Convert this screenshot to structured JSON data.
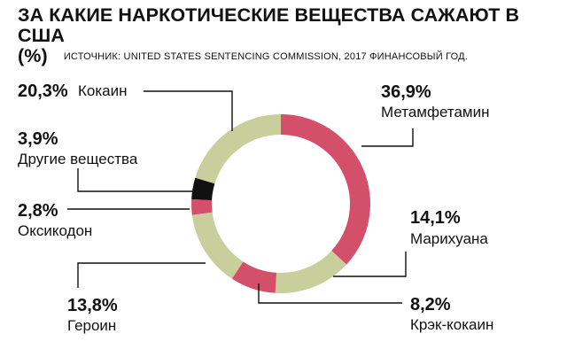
{
  "header": {
    "title_line1": "ЗА КАКИЕ НАРКОТИЧЕСКИЕ ВЕЩЕСТВА САЖАЮТ В США",
    "title_line2": "(%)",
    "source": "ИСТОЧНИК: UNITED STATES SENTENCING COMMISSION, 2017 ФИНАНСОВЫЙ ГОД."
  },
  "chart_data": {
    "type": "pie",
    "donut": true,
    "slices": [
      {
        "label": "Метамфетамин",
        "value": 36.9,
        "value_label": "36,9%",
        "color": "#d4506a"
      },
      {
        "label": "Марихуана",
        "value": 14.1,
        "value_label": "14,1%",
        "color": "#c8cf9c"
      },
      {
        "label": "Крэк-кокаин",
        "value": 8.2,
        "value_label": "8,2%",
        "color": "#d4506a"
      },
      {
        "label": "Героин",
        "value": 13.8,
        "value_label": "13,8%",
        "color": "#c8cf9c"
      },
      {
        "label": "Оксикодон",
        "value": 2.8,
        "value_label": "2,8%",
        "color": "#d4506a"
      },
      {
        "label": "Другие вещества",
        "value": 3.9,
        "value_label": "3,9%",
        "color": "#111111"
      },
      {
        "label": "Кокаин",
        "value": 20.3,
        "value_label": "20,3%",
        "color": "#c8cf9c"
      }
    ]
  }
}
